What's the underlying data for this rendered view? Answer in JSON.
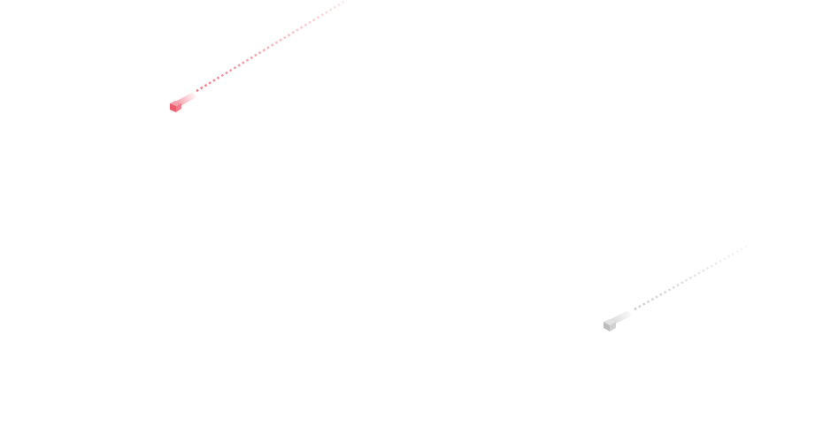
{
  "meteors": [
    {
      "name": "red-meteor",
      "color": "#f06878"
    },
    {
      "name": "gray-meteor",
      "color": "#c4c4c4"
    }
  ]
}
